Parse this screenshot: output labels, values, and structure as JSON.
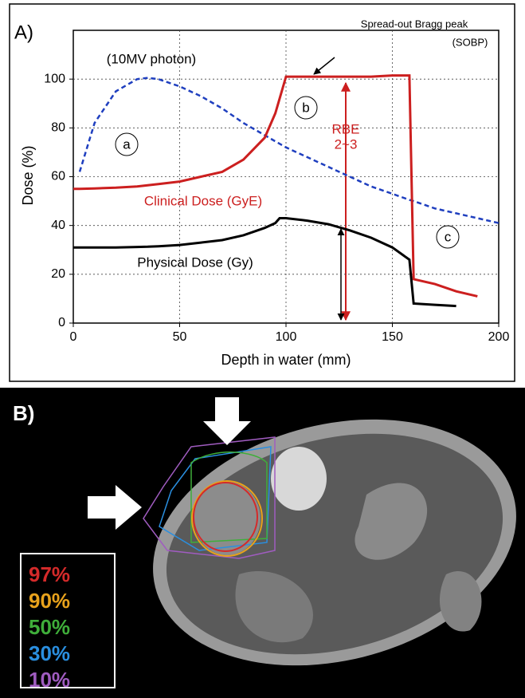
{
  "chart_data": {
    "type": "line",
    "panel_label": "A)",
    "xlabel": "Depth in water (mm)",
    "ylabel": "Dose (%)",
    "x": [
      0,
      3,
      10,
      20,
      30,
      35,
      40,
      50,
      60,
      70,
      80,
      90,
      95,
      97,
      100,
      110,
      120,
      130,
      140,
      150,
      158,
      160,
      170,
      180,
      190,
      200
    ],
    "series": [
      {
        "name": "(10MV photon)",
        "color": "#1f3fbf",
        "dashed": true,
        "values": [
          null,
          62,
          82,
          95,
          100,
          100.5,
          100,
          97,
          93,
          88,
          82,
          77,
          74.5,
          73.5,
          72,
          68,
          64,
          60,
          56,
          53,
          50.5,
          50,
          47,
          45,
          43,
          41
        ]
      },
      {
        "name": "Clinical Dose (GyE)",
        "color": "#cc1f1f",
        "dashed": false,
        "values": [
          55,
          55,
          55.2,
          55.5,
          56,
          56.5,
          57,
          58,
          60,
          62,
          67,
          76,
          86,
          92,
          101,
          101,
          101,
          101,
          101,
          101.5,
          101.5,
          18,
          16,
          13,
          11,
          null
        ]
      },
      {
        "name": "Physical Dose (Gy)",
        "color": "#000000",
        "dashed": false,
        "values": [
          31,
          31,
          31,
          31,
          31.2,
          31.3,
          31.5,
          32,
          33,
          34,
          36,
          39,
          41,
          43,
          43,
          42,
          40.5,
          38,
          35,
          31,
          26,
          8,
          7.5,
          7,
          null,
          null
        ]
      }
    ],
    "annotations": [
      "a",
      "b",
      "c",
      "Spread-out Bragg peak",
      "(SOBP)",
      "RBE",
      "2~3"
    ],
    "xlim": [
      0,
      200
    ],
    "xticks": [
      0,
      50,
      100,
      150,
      200
    ],
    "ylim": [
      0,
      120
    ],
    "yticks": [
      0,
      20,
      40,
      60,
      80,
      100
    ],
    "grid": true
  },
  "image_panel": {
    "label": "B)",
    "legend": [
      {
        "label": "97%",
        "color": "#d42a2a"
      },
      {
        "label": "90%",
        "color": "#e8a21c"
      },
      {
        "label": "50%",
        "color": "#3fae3a"
      },
      {
        "label": "30%",
        "color": "#2a8fe0"
      },
      {
        "label": "10%",
        "color": "#a05cc0"
      }
    ]
  }
}
